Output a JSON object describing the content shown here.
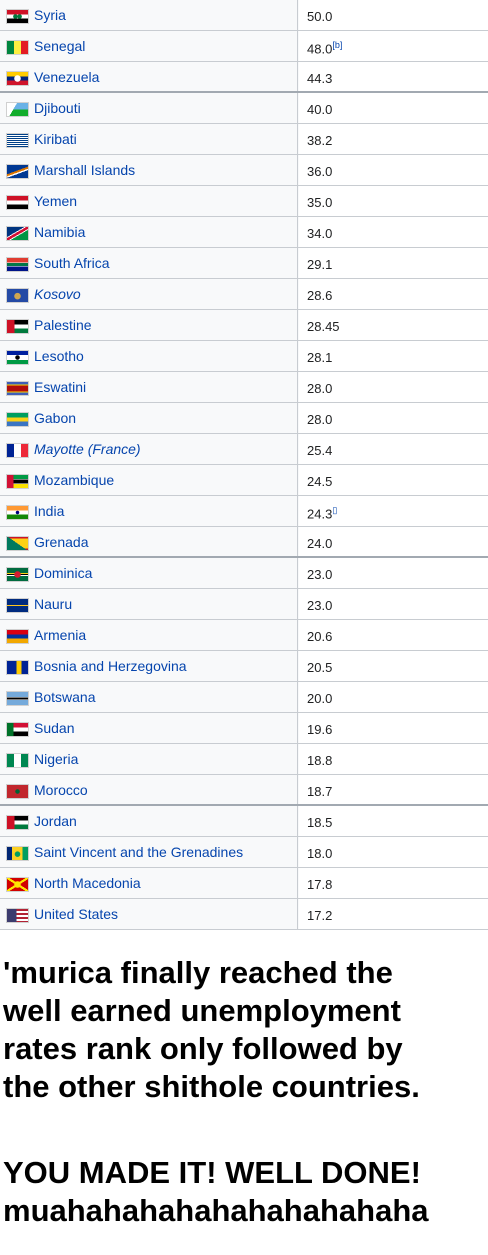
{
  "rows": [
    {
      "country": "Syria",
      "rate": "50.0",
      "note": "",
      "flag": "syria-flag"
    },
    {
      "country": "Senegal",
      "rate": "48.0",
      "note": "[b]",
      "flag": "senegal-flag"
    },
    {
      "country": "Venezuela",
      "rate": "44.3",
      "note": "",
      "flag": "venezuela-flag"
    },
    {
      "country": "Djibouti",
      "rate": "40.0",
      "note": "",
      "flag": "djibouti-flag"
    },
    {
      "country": "Kiribati",
      "rate": "38.2",
      "note": "",
      "flag": "kiribati-flag"
    },
    {
      "country": "Marshall Islands",
      "rate": "36.0",
      "note": "",
      "flag": "marshall-islands-flag"
    },
    {
      "country": "Yemen",
      "rate": "35.0",
      "note": "",
      "flag": "yemen-flag"
    },
    {
      "country": "Namibia",
      "rate": "34.0",
      "note": "",
      "flag": "namibia-flag"
    },
    {
      "country": "South Africa",
      "rate": "29.1",
      "note": "",
      "flag": "south-africa-flag"
    },
    {
      "country": "Kosovo",
      "rate": "28.6",
      "note": "",
      "flag": "kosovo-flag"
    },
    {
      "country": "Palestine",
      "rate": "28.45",
      "note": "",
      "flag": "palestine-flag"
    },
    {
      "country": "Lesotho",
      "rate": "28.1",
      "note": "",
      "flag": "lesotho-flag"
    },
    {
      "country": "Eswatini",
      "rate": "28.0",
      "note": "",
      "flag": "eswatini-flag"
    },
    {
      "country": "Gabon",
      "rate": "28.0",
      "note": "",
      "flag": "gabon-flag"
    },
    {
      "country": "Mayotte (France)",
      "rate": "25.4",
      "note": "",
      "flag": "mayotte-flag"
    },
    {
      "country": "Mozambique",
      "rate": "24.5",
      "note": "",
      "flag": "mozambique-flag"
    },
    {
      "country": "India",
      "rate": "24.3",
      "note": "▯",
      "flag": "india-flag"
    },
    {
      "country": "Grenada",
      "rate": "24.0",
      "note": "",
      "flag": "grenada-flag"
    },
    {
      "country": "Dominica",
      "rate": "23.0",
      "note": "",
      "flag": "dominica-flag"
    },
    {
      "country": "Nauru",
      "rate": "23.0",
      "note": "",
      "flag": "nauru-flag"
    },
    {
      "country": "Armenia",
      "rate": "20.6",
      "note": "",
      "flag": "armenia-flag"
    },
    {
      "country": "Bosnia and Herzegovina",
      "rate": "20.5",
      "note": "",
      "flag": "bosnia-flag"
    },
    {
      "country": "Botswana",
      "rate": "20.0",
      "note": "",
      "flag": "botswana-flag"
    },
    {
      "country": "Sudan",
      "rate": "19.6",
      "note": "",
      "flag": "sudan-flag"
    },
    {
      "country": "Nigeria",
      "rate": "18.8",
      "note": "",
      "flag": "nigeria-flag"
    },
    {
      "country": "Morocco",
      "rate": "18.7",
      "note": "",
      "flag": "morocco-flag"
    },
    {
      "country": "Jordan",
      "rate": "18.5",
      "note": "",
      "flag": "jordan-flag"
    },
    {
      "country": "Saint Vincent and the Grenadines",
      "rate": "18.0",
      "note": "",
      "flag": "saint-vincent-flag"
    },
    {
      "country": "North Macedonia",
      "rate": "17.8",
      "note": "",
      "flag": "north-macedonia-flag"
    },
    {
      "country": "United States",
      "rate": "17.2",
      "note": "",
      "flag": "united-states-flag"
    }
  ],
  "caption": {
    "lines": [
      "'murica finally reached the",
      "well earned unemployment",
      "rates rank only followed by",
      "the other shithole countries.",
      "",
      "YOU MADE IT! WELL DONE!",
      "muahahahahahahahahahaha"
    ]
  }
}
